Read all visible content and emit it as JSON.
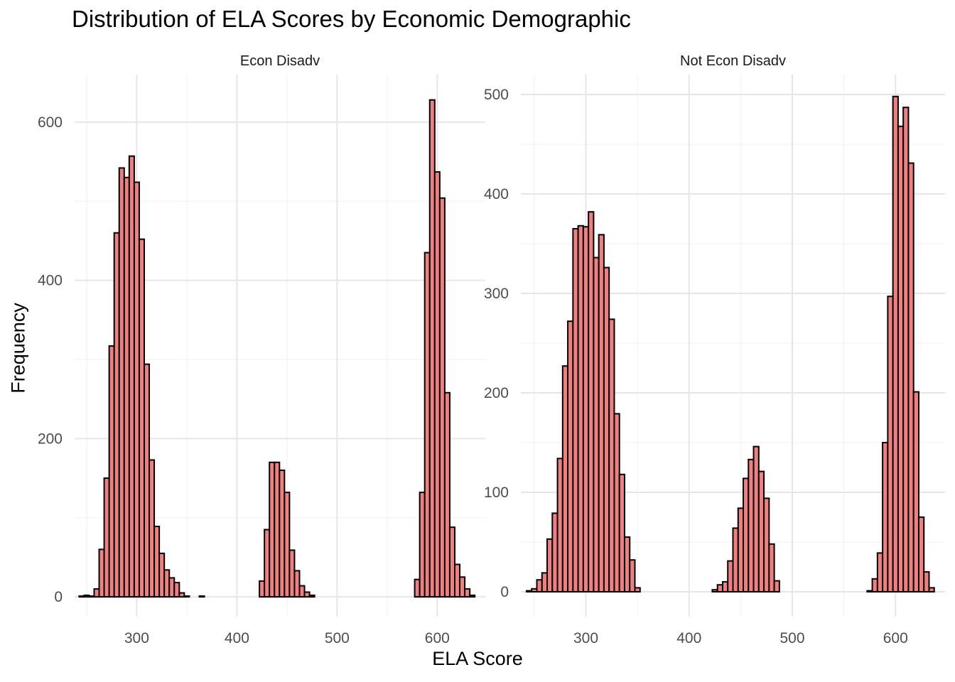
{
  "chart_data": {
    "type": "histogram",
    "title": "Distribution of ELA Scores by Economic Demographic",
    "xlabel": "ELA Score",
    "ylabel": "Frequency",
    "bin_width": 5,
    "fill_color": "#f08080",
    "outline_color": "#000000",
    "grid": true,
    "facets": [
      {
        "label": "Econ Disadv",
        "xlim": [
          238,
          648
        ],
        "ylim": [
          -25,
          660
        ],
        "x_ticks": [
          300,
          400,
          500,
          600
        ],
        "y_ticks": [
          0,
          200,
          400,
          600
        ],
        "bin_start": 245,
        "counts": [
          1,
          2,
          1,
          10,
          60,
          150,
          317,
          460,
          542,
          530,
          557,
          524,
          452,
          294,
          173,
          89,
          55,
          34,
          24,
          18,
          5,
          1,
          0,
          0,
          1,
          0,
          0,
          0,
          0,
          0,
          0,
          0,
          0,
          0,
          0,
          0,
          20,
          85,
          170,
          170,
          160,
          132,
          59,
          33,
          14,
          6,
          2,
          0,
          0,
          0,
          0,
          0,
          0,
          0,
          0,
          0,
          0,
          0,
          0,
          0,
          0,
          0,
          0,
          0,
          0,
          0,
          0,
          22,
          132,
          435,
          628,
          537,
          504,
          258,
          88,
          41,
          25,
          10,
          2
        ]
      },
      {
        "label": "Not Econ Disadv",
        "xlim": [
          237,
          648
        ],
        "ylim": [
          -25,
          520
        ],
        "x_ticks": [
          300,
          400,
          500,
          600
        ],
        "y_ticks": [
          0,
          100,
          200,
          300,
          400,
          500
        ],
        "bin_start": 245,
        "counts": [
          1,
          3,
          12,
          19,
          53,
          79,
          134,
          227,
          272,
          365,
          368,
          367,
          382,
          336,
          359,
          326,
          274,
          179,
          118,
          55,
          32,
          4,
          0,
          0,
          0,
          0,
          0,
          0,
          0,
          0,
          0,
          0,
          0,
          0,
          0,
          0,
          2,
          7,
          10,
          31,
          64,
          84,
          114,
          133,
          146,
          121,
          94,
          48,
          11,
          0,
          0,
          0,
          0,
          0,
          0,
          0,
          0,
          0,
          0,
          0,
          0,
          0,
          0,
          0,
          0,
          0,
          1,
          13,
          39,
          150,
          297,
          498,
          468,
          487,
          431,
          201,
          75,
          20,
          4
        ]
      }
    ]
  }
}
